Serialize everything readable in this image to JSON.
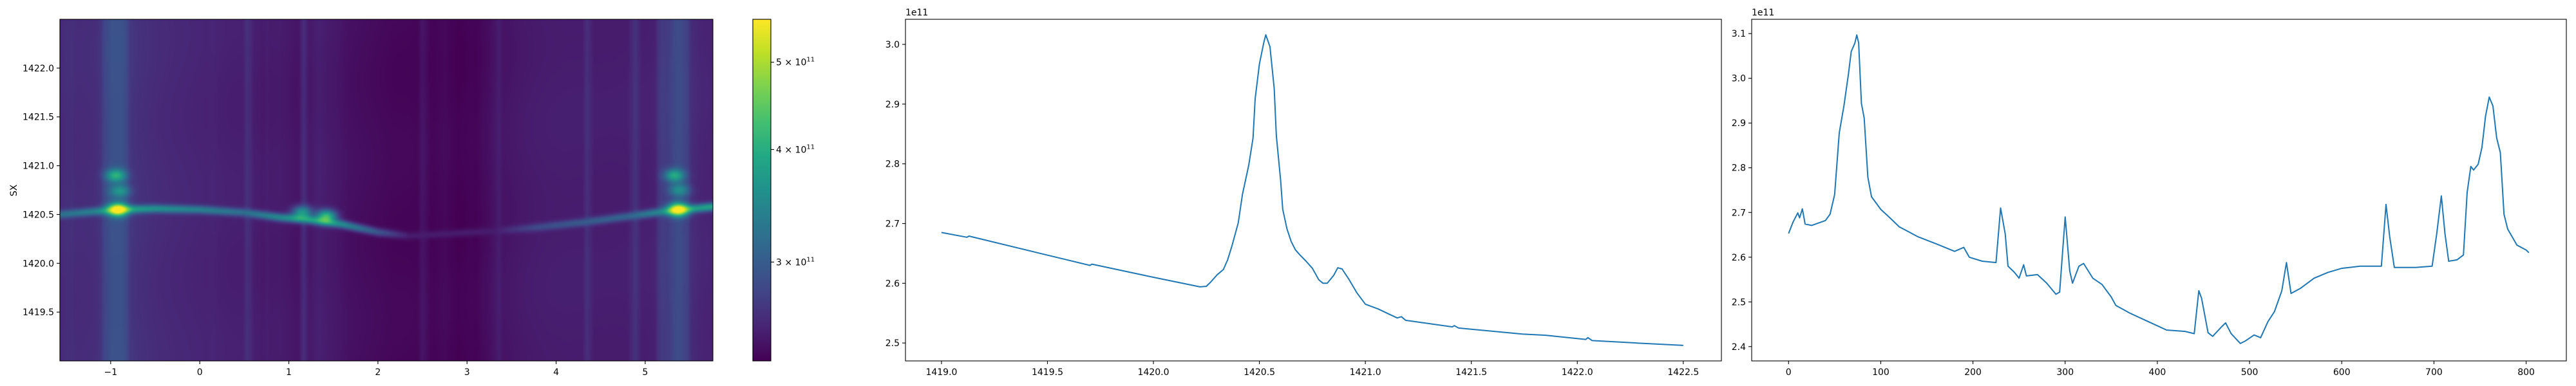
{
  "chart_data": [
    {
      "type": "heatmap",
      "ylabel": "SX",
      "xlim": [
        -1.57,
        5.76
      ],
      "ylim": [
        1419.0,
        1422.5
      ],
      "xticks": [
        -1,
        0,
        1,
        2,
        3,
        4,
        5
      ],
      "xtick_labels": [
        "−1",
        "0",
        "1",
        "2",
        "3",
        "4",
        "5"
      ],
      "yticks": [
        1419.5,
        1420.0,
        1420.5,
        1421.0,
        1421.5,
        1422.0
      ],
      "ytick_labels": [
        "1419.5",
        "1420.0",
        "1420.5",
        "1421.0",
        "1421.5",
        "1422.0"
      ],
      "colormap": "viridis",
      "color_scale": "log",
      "clim": [
        233000000000.0,
        558000000000.0
      ],
      "colorbar": {
        "ticks": [
          300000000000.0,
          400000000000.0,
          500000000000.0
        ],
        "tick_labels": [
          {
            "base": "3 × 10",
            "exp": "11"
          },
          {
            "base": "4 × 10",
            "exp": "11"
          },
          {
            "base": "5 × 10",
            "exp": "11"
          }
        ]
      },
      "ridge": [
        [
          -1.57,
          1420.5,
          320000000000.0
        ],
        [
          -1.2,
          1420.53,
          340000000000.0
        ],
        [
          -0.9,
          1420.55,
          390000000000.0
        ],
        [
          -0.5,
          1420.56,
          360000000000.0
        ],
        [
          0.0,
          1420.55,
          340000000000.0
        ],
        [
          0.5,
          1420.52,
          320000000000.0
        ],
        [
          0.9,
          1420.47,
          350000000000.0
        ],
        [
          1.2,
          1420.45,
          370000000000.0
        ],
        [
          1.6,
          1420.4,
          350000000000.0
        ],
        [
          2.0,
          1420.32,
          295000000000.0
        ],
        [
          2.35,
          1420.28,
          250000000000.0
        ],
        [
          3.3,
          1420.33,
          250000000000.0
        ],
        [
          3.8,
          1420.37,
          285000000000.0
        ],
        [
          4.3,
          1420.42,
          300000000000.0
        ],
        [
          4.8,
          1420.48,
          310000000000.0
        ],
        [
          5.2,
          1420.53,
          350000000000.0
        ],
        [
          5.76,
          1420.58,
          390000000000.0
        ]
      ],
      "peaks": [
        [
          -0.92,
          1420.55,
          550000000000.0
        ],
        [
          -0.94,
          1420.9,
          410000000000.0
        ],
        [
          -0.9,
          1420.74,
          370000000000.0
        ],
        [
          1.42,
          1420.48,
          420000000000.0
        ],
        [
          1.15,
          1420.52,
          370000000000.0
        ],
        [
          5.37,
          1420.55,
          550000000000.0
        ],
        [
          5.33,
          1420.9,
          400000000000.0
        ],
        [
          5.38,
          1420.75,
          360000000000.0
        ]
      ]
    },
    {
      "type": "line",
      "offset_text": "1e11",
      "color": "#1f77b4",
      "xlim": [
        1418.83,
        1422.68
      ],
      "ylim": [
        2.47,
        3.042
      ],
      "xticks": [
        1419.0,
        1419.5,
        1420.0,
        1420.5,
        1421.0,
        1421.5,
        1422.0,
        1422.5
      ],
      "xtick_labels": [
        "1419.0",
        "1419.5",
        "1420.0",
        "1420.5",
        "1421.0",
        "1421.5",
        "1422.0",
        "1422.5"
      ],
      "yticks": [
        2.5,
        2.6,
        2.7,
        2.8,
        2.9,
        3.0
      ],
      "ytick_labels": [
        "2.5",
        "2.6",
        "2.7",
        "2.8",
        "2.9",
        "3.0"
      ],
      "x": [
        1419.0,
        1419.12,
        1419.13,
        1419.49,
        1419.7,
        1419.71,
        1420.0,
        1420.22,
        1420.25,
        1420.27,
        1420.3,
        1420.33,
        1420.35,
        1420.37,
        1420.4,
        1420.42,
        1420.45,
        1420.47,
        1420.48,
        1420.5,
        1420.52,
        1420.53,
        1420.55,
        1420.57,
        1420.58,
        1420.6,
        1420.61,
        1420.63,
        1420.65,
        1420.67,
        1420.69,
        1420.72,
        1420.75,
        1420.78,
        1420.8,
        1420.82,
        1420.85,
        1420.87,
        1420.89,
        1420.92,
        1420.96,
        1421.0,
        1421.06,
        1421.15,
        1421.17,
        1421.19,
        1421.41,
        1421.42,
        1421.44,
        1421.74,
        1421.85,
        1422.04,
        1422.05,
        1422.07,
        1422.28,
        1422.5
      ],
      "y": [
        2.685,
        2.677,
        2.679,
        2.648,
        2.63,
        2.632,
        2.61,
        2.594,
        2.595,
        2.602,
        2.614,
        2.623,
        2.639,
        2.662,
        2.701,
        2.749,
        2.798,
        2.843,
        2.909,
        2.967,
        3.002,
        3.016,
        2.996,
        2.926,
        2.847,
        2.773,
        2.724,
        2.691,
        2.67,
        2.656,
        2.648,
        2.637,
        2.625,
        2.606,
        2.6,
        2.6,
        2.613,
        2.626,
        2.624,
        2.608,
        2.584,
        2.565,
        2.557,
        2.542,
        2.544,
        2.538,
        2.527,
        2.529,
        2.525,
        2.515,
        2.513,
        2.506,
        2.509,
        2.504,
        2.5,
        2.496
      ]
    },
    {
      "type": "line",
      "offset_text": "1e11",
      "color": "#1f77b4",
      "xlim": [
        -40,
        843.6
      ],
      "ylim": [
        2.368,
        3.132
      ],
      "xticks": [
        0,
        100,
        200,
        300,
        400,
        500,
        600,
        700,
        800
      ],
      "xtick_labels": [
        "0",
        "100",
        "200",
        "300",
        "400",
        "500",
        "600",
        "700",
        "800"
      ],
      "yticks": [
        2.4,
        2.5,
        2.6,
        2.7,
        2.8,
        2.9,
        3.0,
        3.1
      ],
      "ytick_labels": [
        "2.4",
        "2.5",
        "2.6",
        "2.7",
        "2.8",
        "2.9",
        "3.0",
        "3.1"
      ],
      "x": [
        0,
        5,
        10,
        12,
        15,
        18,
        25,
        40,
        45,
        50,
        55,
        60,
        65,
        68,
        72,
        74,
        76,
        79,
        82,
        86,
        90,
        100,
        110,
        120,
        140,
        160,
        180,
        190,
        196,
        210,
        225,
        230,
        235,
        238,
        245,
        250,
        255,
        258,
        270,
        280,
        290,
        294,
        300,
        305,
        308,
        315,
        320,
        330,
        340,
        350,
        355,
        370,
        390,
        410,
        430,
        440,
        445,
        448,
        455,
        460,
        470,
        474,
        480,
        490,
        495,
        505,
        512,
        520,
        527,
        535,
        540,
        545,
        555,
        570,
        585,
        600,
        620,
        643,
        648,
        652,
        657,
        680,
        698,
        703,
        708,
        712,
        716,
        725,
        732,
        736,
        740,
        743,
        748,
        752,
        756,
        760,
        764,
        768,
        772,
        776,
        780,
        790,
        800,
        803
      ],
      "y": [
        2.653,
        2.679,
        2.699,
        2.688,
        2.708,
        2.674,
        2.671,
        2.682,
        2.696,
        2.74,
        2.878,
        2.938,
        3.01,
        3.06,
        3.079,
        3.097,
        3.079,
        2.944,
        2.911,
        2.779,
        2.735,
        2.707,
        2.688,
        2.668,
        2.646,
        2.63,
        2.613,
        2.622,
        2.6,
        2.591,
        2.588,
        2.71,
        2.652,
        2.58,
        2.566,
        2.553,
        2.583,
        2.558,
        2.561,
        2.542,
        2.517,
        2.522,
        2.69,
        2.569,
        2.542,
        2.58,
        2.586,
        2.553,
        2.539,
        2.511,
        2.492,
        2.475,
        2.456,
        2.437,
        2.434,
        2.429,
        2.525,
        2.508,
        2.431,
        2.423,
        2.445,
        2.453,
        2.429,
        2.407,
        2.412,
        2.426,
        2.42,
        2.456,
        2.478,
        2.525,
        2.588,
        2.519,
        2.53,
        2.553,
        2.566,
        2.575,
        2.58,
        2.58,
        2.718,
        2.646,
        2.577,
        2.577,
        2.58,
        2.652,
        2.737,
        2.652,
        2.591,
        2.594,
        2.605,
        2.745,
        2.803,
        2.795,
        2.808,
        2.845,
        2.916,
        2.958,
        2.938,
        2.867,
        2.834,
        2.696,
        2.663,
        2.627,
        2.616,
        2.61
      ]
    }
  ]
}
